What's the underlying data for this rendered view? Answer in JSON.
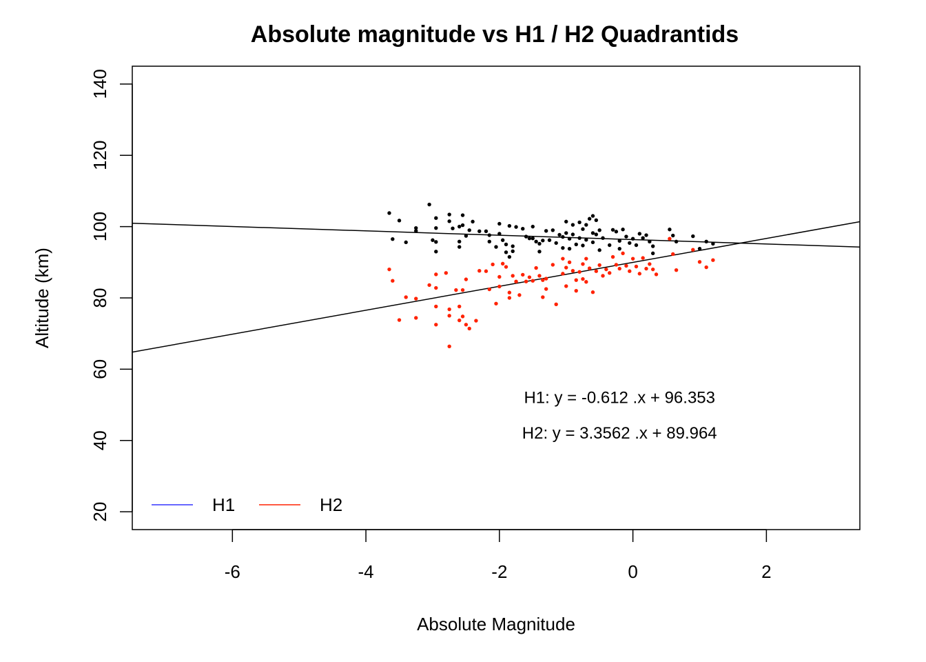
{
  "chart_data": {
    "type": "scatter",
    "title": "Absolute magnitude vs H1 / H2 Quadrantids",
    "xlabel": "Absolute Magnitude",
    "ylabel": "Altitude (km)",
    "xlim": [
      -7.5,
      3.4
    ],
    "ylim": [
      15,
      145
    ],
    "xticks": [
      -6,
      -4,
      -2,
      0,
      2
    ],
    "yticks": [
      20,
      40,
      60,
      80,
      100,
      120,
      140
    ],
    "xtick_labels": [
      "-6",
      "-4",
      "-2",
      "0",
      "2"
    ],
    "ytick_labels": [
      "20",
      "40",
      "60",
      "80",
      "100",
      "120",
      "140"
    ],
    "grid": false,
    "legend_position": "bottom-left",
    "series": [
      {
        "name": "H1",
        "color": "#000000",
        "legend_color": "#3333ff",
        "points": [
          [
            -3.65,
            103.8
          ],
          [
            -3.6,
            96.5
          ],
          [
            -3.5,
            101.7
          ],
          [
            -3.4,
            95.6
          ],
          [
            -3.25,
            99.6
          ],
          [
            -3.25,
            98.8
          ],
          [
            -3.05,
            106.2
          ],
          [
            -2.95,
            102.4
          ],
          [
            -2.95,
            99.6
          ],
          [
            -3.0,
            96.2
          ],
          [
            -2.95,
            93.0
          ],
          [
            -2.95,
            95.7
          ],
          [
            -2.75,
            103.4
          ],
          [
            -2.75,
            101.5
          ],
          [
            -2.7,
            99.5
          ],
          [
            -2.6,
            100.0
          ],
          [
            -2.6,
            95.8
          ],
          [
            -2.6,
            94.3
          ],
          [
            -2.55,
            103.2
          ],
          [
            -2.55,
            100.4
          ],
          [
            -2.5,
            97.4
          ],
          [
            -2.45,
            99.0
          ],
          [
            -2.4,
            101.4
          ],
          [
            -2.3,
            98.7
          ],
          [
            -2.2,
            98.7
          ],
          [
            -2.15,
            97.6
          ],
          [
            -2.15,
            95.8
          ],
          [
            -2.05,
            94.3
          ],
          [
            -2.0,
            100.8
          ],
          [
            -2.0,
            98.0
          ],
          [
            -1.95,
            96.2
          ],
          [
            -1.9,
            95.0
          ],
          [
            -1.9,
            92.8
          ],
          [
            -1.85,
            100.2
          ],
          [
            -1.85,
            91.5
          ],
          [
            -1.8,
            94.5
          ],
          [
            -1.8,
            93.1
          ],
          [
            -1.75,
            99.9
          ],
          [
            -1.65,
            99.4
          ],
          [
            -1.6,
            97.2
          ],
          [
            -1.55,
            96.7
          ],
          [
            -1.5,
            100.0
          ],
          [
            -1.5,
            96.7
          ],
          [
            -1.45,
            95.8
          ],
          [
            -1.4,
            95.2
          ],
          [
            -1.4,
            93.0
          ],
          [
            -1.35,
            96.1
          ],
          [
            -1.3,
            98.8
          ],
          [
            -1.25,
            96.2
          ],
          [
            -1.2,
            99.0
          ],
          [
            -1.15,
            95.4
          ],
          [
            -1.1,
            97.7
          ],
          [
            -1.05,
            97.1
          ],
          [
            -1.05,
            94.0
          ],
          [
            -1.0,
            101.4
          ],
          [
            -1.0,
            98.2
          ],
          [
            -0.95,
            96.6
          ],
          [
            -0.95,
            93.8
          ],
          [
            -0.9,
            100.5
          ],
          [
            -0.9,
            97.8
          ],
          [
            -0.85,
            95.0
          ],
          [
            -0.8,
            101.2
          ],
          [
            -0.8,
            96.8
          ],
          [
            -0.75,
            99.3
          ],
          [
            -0.75,
            94.7
          ],
          [
            -0.7,
            100.5
          ],
          [
            -0.7,
            96.3
          ],
          [
            -0.65,
            102.2
          ],
          [
            -0.6,
            103.0
          ],
          [
            -0.6,
            98.2
          ],
          [
            -0.6,
            95.6
          ],
          [
            -0.55,
            101.8
          ],
          [
            -0.55,
            97.8
          ],
          [
            -0.5,
            99.0
          ],
          [
            -0.5,
            93.4
          ],
          [
            -0.45,
            96.8
          ],
          [
            -0.35,
            94.8
          ],
          [
            -0.3,
            99.1
          ],
          [
            -0.25,
            98.6
          ],
          [
            -0.2,
            96.0
          ],
          [
            -0.2,
            93.8
          ],
          [
            -0.15,
            99.2
          ],
          [
            -0.1,
            97.2
          ],
          [
            -0.05,
            95.4
          ],
          [
            0.0,
            96.6
          ],
          [
            0.05,
            94.8
          ],
          [
            0.1,
            98.0
          ],
          [
            0.15,
            96.8
          ],
          [
            0.2,
            97.6
          ],
          [
            0.25,
            95.8
          ],
          [
            0.3,
            94.5
          ],
          [
            0.3,
            92.5
          ],
          [
            0.55,
            99.2
          ],
          [
            0.6,
            97.5
          ],
          [
            0.65,
            95.8
          ],
          [
            0.9,
            97.3
          ],
          [
            1.0,
            93.8
          ],
          [
            1.1,
            95.8
          ],
          [
            1.2,
            95.2
          ]
        ]
      },
      {
        "name": "H2",
        "color": "#ff2200",
        "legend_color": "#ff2200",
        "points": [
          [
            -3.65,
            88.0
          ],
          [
            -3.6,
            84.8
          ],
          [
            -3.5,
            73.8
          ],
          [
            -3.4,
            80.2
          ],
          [
            -3.25,
            79.8
          ],
          [
            -3.25,
            74.4
          ],
          [
            -3.05,
            83.6
          ],
          [
            -2.95,
            86.6
          ],
          [
            -2.95,
            82.8
          ],
          [
            -2.95,
            77.6
          ],
          [
            -2.95,
            72.5
          ],
          [
            -2.8,
            87.0
          ],
          [
            -2.75,
            76.8
          ],
          [
            -2.75,
            75.0
          ],
          [
            -2.75,
            66.4
          ],
          [
            -2.65,
            82.2
          ],
          [
            -2.6,
            77.6
          ],
          [
            -2.6,
            73.7
          ],
          [
            -2.55,
            82.2
          ],
          [
            -2.55,
            74.8
          ],
          [
            -2.5,
            85.2
          ],
          [
            -2.5,
            72.5
          ],
          [
            -2.45,
            71.4
          ],
          [
            -2.35,
            73.6
          ],
          [
            -2.3,
            87.6
          ],
          [
            -2.2,
            87.5
          ],
          [
            -2.15,
            82.4
          ],
          [
            -2.1,
            89.4
          ],
          [
            -2.05,
            78.4
          ],
          [
            -2.0,
            85.9
          ],
          [
            -2.0,
            83.2
          ],
          [
            -1.95,
            89.6
          ],
          [
            -1.9,
            88.7
          ],
          [
            -1.85,
            81.5
          ],
          [
            -1.85,
            80.0
          ],
          [
            -1.8,
            86.2
          ],
          [
            -1.75,
            84.6
          ],
          [
            -1.7,
            80.8
          ],
          [
            -1.65,
            86.5
          ],
          [
            -1.6,
            84.6
          ],
          [
            -1.55,
            85.8
          ],
          [
            -1.5,
            84.8
          ],
          [
            -1.45,
            88.4
          ],
          [
            -1.4,
            86.2
          ],
          [
            -1.35,
            85.0
          ],
          [
            -1.35,
            80.2
          ],
          [
            -1.3,
            85.4
          ],
          [
            -1.3,
            82.5
          ],
          [
            -1.2,
            89.3
          ],
          [
            -1.15,
            78.2
          ],
          [
            -1.05,
            91.0
          ],
          [
            -1.05,
            86.8
          ],
          [
            -1.0,
            88.5
          ],
          [
            -1.0,
            83.3
          ],
          [
            -0.95,
            90.0
          ],
          [
            -0.9,
            87.6
          ],
          [
            -0.85,
            85.0
          ],
          [
            -0.85,
            82.0
          ],
          [
            -0.8,
            87.3
          ],
          [
            -0.75,
            89.5
          ],
          [
            -0.75,
            85.3
          ],
          [
            -0.7,
            91.0
          ],
          [
            -0.7,
            84.5
          ],
          [
            -0.65,
            88.3
          ],
          [
            -0.6,
            81.6
          ],
          [
            -0.55,
            87.5
          ],
          [
            -0.5,
            89.2
          ],
          [
            -0.45,
            86.2
          ],
          [
            -0.4,
            88.0
          ],
          [
            -0.35,
            87.0
          ],
          [
            -0.3,
            91.5
          ],
          [
            -0.25,
            89.3
          ],
          [
            -0.2,
            88.2
          ],
          [
            -0.15,
            92.5
          ],
          [
            -0.1,
            89.0
          ],
          [
            -0.05,
            87.5
          ],
          [
            0.0,
            91.0
          ],
          [
            0.05,
            88.8
          ],
          [
            0.1,
            86.8
          ],
          [
            0.15,
            91.2
          ],
          [
            0.2,
            88.2
          ],
          [
            0.25,
            89.5
          ],
          [
            0.3,
            88.0
          ],
          [
            0.35,
            86.6
          ],
          [
            0.55,
            96.6
          ],
          [
            0.6,
            92.3
          ],
          [
            0.65,
            87.8
          ],
          [
            0.9,
            93.5
          ],
          [
            1.0,
            90.1
          ],
          [
            1.1,
            88.6
          ],
          [
            1.2,
            90.6
          ]
        ]
      }
    ],
    "regression_lines": [
      {
        "name": "H1",
        "slope": -0.612,
        "intercept": 96.353,
        "color": "#000000"
      },
      {
        "name": "H2",
        "slope": 3.3562,
        "intercept": 89.964,
        "color": "#000000"
      }
    ],
    "annotations": [
      {
        "text": "H1: y = -0.612 .x + 96.353",
        "x": -0.2,
        "y": 50.5
      },
      {
        "text": "H2: y = 3.3562 .x + 89.964",
        "x": -0.2,
        "y": 40.5
      }
    ],
    "legend": [
      {
        "label": "H1",
        "color": "#3333ff"
      },
      {
        "label": "H2",
        "color": "#ff2200"
      }
    ]
  }
}
